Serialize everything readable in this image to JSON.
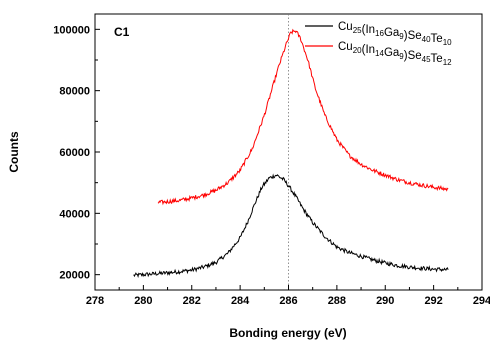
{
  "chart_data": {
    "type": "line",
    "panel_label": "C1",
    "xlabel": "Bonding energy (eV)",
    "ylabel": "Counts",
    "xlim": [
      278,
      294
    ],
    "ylim": [
      15000,
      105000
    ],
    "x_ticks": [
      278,
      280,
      282,
      284,
      286,
      288,
      290,
      292,
      294
    ],
    "y_ticks": [
      20000,
      40000,
      60000,
      80000,
      100000
    ],
    "reference_line_x": 286,
    "grid": false,
    "legend_placement": "top-right",
    "series": [
      {
        "legend_parts": [
          {
            "text": "Cu",
            "sub": false
          },
          {
            "text": "25",
            "sub": true
          },
          {
            "text": "(In",
            "sub": false
          },
          {
            "text": "16",
            "sub": true
          },
          {
            "text": "Ga",
            "sub": false
          },
          {
            "text": "9",
            "sub": true
          },
          {
            "text": ")Se",
            "sub": false
          },
          {
            "text": "40",
            "sub": true
          },
          {
            "text": "Te",
            "sub": false
          },
          {
            "text": "10",
            "sub": true
          }
        ],
        "color": "#000000",
        "x": [
          279.6,
          280.0,
          280.5,
          281.0,
          281.5,
          282.0,
          282.5,
          283.0,
          283.5,
          284.0,
          284.3,
          284.6,
          284.9,
          285.2,
          285.5,
          285.8,
          286.0,
          286.3,
          286.6,
          287.0,
          287.5,
          288.0,
          288.5,
          289.0,
          289.5,
          290.0,
          290.5,
          291.0,
          291.5,
          292.0,
          292.6
        ],
        "y": [
          19800,
          20000,
          20300,
          20600,
          21000,
          21500,
          22500,
          24000,
          27000,
          32000,
          37000,
          43000,
          48500,
          51500,
          52500,
          51000,
          49000,
          45500,
          41500,
          37000,
          32500,
          29000,
          27200,
          26000,
          24800,
          23800,
          23000,
          22500,
          22100,
          21800,
          21600
        ]
      },
      {
        "legend_parts": [
          {
            "text": "Cu",
            "sub": false
          },
          {
            "text": "20",
            "sub": true
          },
          {
            "text": "(In",
            "sub": false
          },
          {
            "text": "14",
            "sub": true
          },
          {
            "text": "Ga",
            "sub": false
          },
          {
            "text": "9",
            "sub": true
          },
          {
            "text": ")Se",
            "sub": false
          },
          {
            "text": "45",
            "sub": true
          },
          {
            "text": "Te",
            "sub": false
          },
          {
            "text": "12",
            "sub": true
          }
        ],
        "color": "#ff0000",
        "x": [
          280.6,
          281.0,
          281.5,
          282.0,
          282.5,
          283.0,
          283.5,
          284.0,
          284.5,
          285.0,
          285.3,
          285.6,
          285.9,
          286.1,
          286.3,
          286.5,
          286.8,
          287.1,
          287.5,
          288.0,
          288.5,
          289.0,
          289.5,
          290.0,
          290.5,
          291.0,
          291.5,
          292.0,
          292.6
        ],
        "y": [
          43500,
          43800,
          44200,
          45000,
          46000,
          47500,
          50000,
          54000,
          61000,
          72000,
          80000,
          88000,
          95000,
          99000,
          99500,
          97000,
          90000,
          81000,
          72000,
          64000,
          59000,
          56000,
          54000,
          52500,
          51000,
          50000,
          49200,
          48500,
          47800
        ]
      }
    ]
  }
}
